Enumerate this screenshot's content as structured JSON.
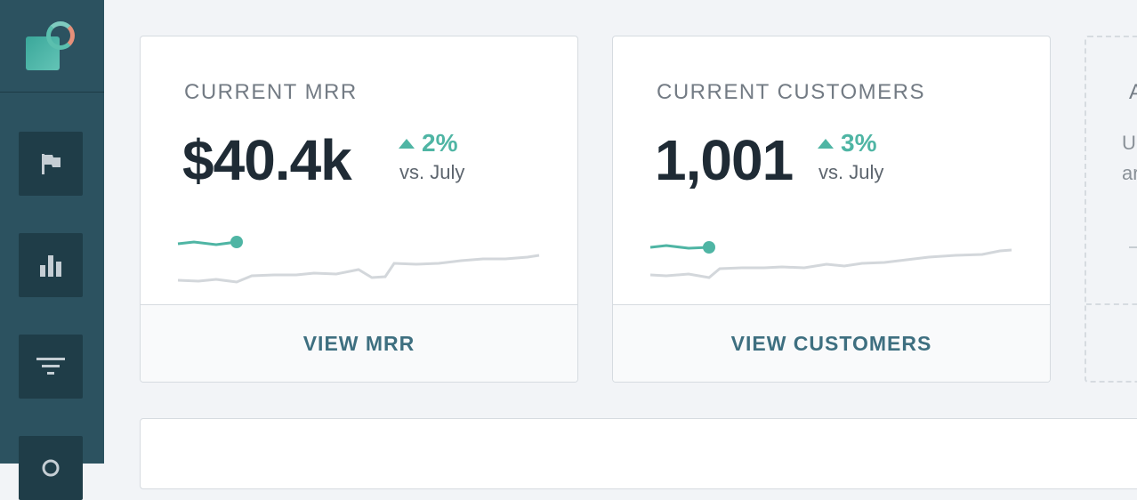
{
  "sidebar": {
    "items": [
      {
        "name": "flag-icon"
      },
      {
        "name": "bar-chart-icon"
      },
      {
        "name": "filter-icon"
      },
      {
        "name": "settings-icon"
      }
    ]
  },
  "cards": [
    {
      "label": "CURRENT MRR",
      "value": "$40.4k",
      "delta": "2%",
      "compare": "vs. July",
      "footer": "VIEW MRR"
    },
    {
      "label": "CURRENT CUSTOMERS",
      "value": "1,001",
      "delta": "3%",
      "compare": "vs. July",
      "footer": "VIEW CUSTOMERS"
    }
  ],
  "partial_card": {
    "title": "A",
    "line1": "U",
    "line2": "ar"
  },
  "colors": {
    "sidebar": "#2c5260",
    "accent": "#4fb5a4",
    "link": "#3e6f80"
  }
}
